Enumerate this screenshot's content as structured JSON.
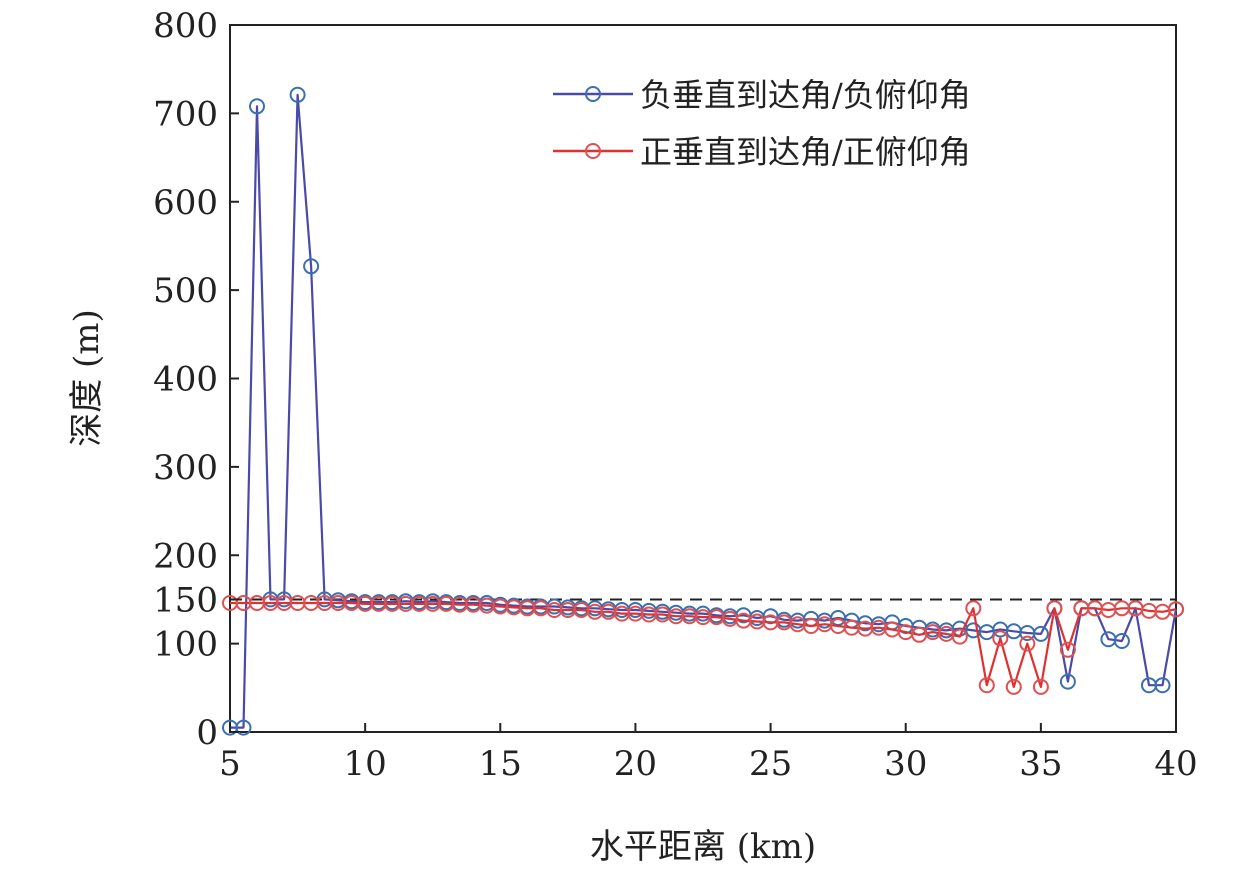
{
  "chart_data": {
    "type": "line",
    "xlabel": "水平距离 (km)",
    "ylabel": "深度 (m)",
    "xlim": [
      5,
      40
    ],
    "ylim": [
      0,
      800
    ],
    "xticks": [
      "5",
      "10",
      "15",
      "20",
      "25",
      "30",
      "35",
      "40"
    ],
    "yticks": [
      "0",
      "100",
      "150",
      "200",
      "300",
      "400",
      "500",
      "600",
      "700",
      "800"
    ],
    "reference_line": {
      "y": 150,
      "style": "dashed"
    },
    "legend_position": "top-right",
    "series": [
      {
        "name": "负垂直到达角/负俯仰角",
        "color": "#4a4aa8",
        "marker_color": "#3a6fb0",
        "points": [
          [
            5.0,
            5
          ],
          [
            5.5,
            5
          ],
          [
            6.0,
            708
          ],
          [
            6.5,
            150
          ],
          [
            7.0,
            150
          ],
          [
            7.5,
            721
          ],
          [
            8.0,
            527
          ],
          [
            8.5,
            150
          ],
          [
            9.0,
            149
          ],
          [
            9.5,
            148
          ],
          [
            10.0,
            147
          ],
          [
            10.5,
            147
          ],
          [
            11.0,
            147
          ],
          [
            11.5,
            148
          ],
          [
            12.0,
            147
          ],
          [
            12.5,
            148
          ],
          [
            13.0,
            147
          ],
          [
            13.5,
            146
          ],
          [
            14.0,
            146
          ],
          [
            14.5,
            146
          ],
          [
            15.0,
            144
          ],
          [
            15.5,
            143
          ],
          [
            16.0,
            142
          ],
          [
            16.5,
            142
          ],
          [
            17.0,
            142
          ],
          [
            17.5,
            141
          ],
          [
            18.0,
            140
          ],
          [
            18.5,
            140
          ],
          [
            19.0,
            139
          ],
          [
            19.5,
            138
          ],
          [
            20.0,
            138
          ],
          [
            20.5,
            137
          ],
          [
            21.0,
            136
          ],
          [
            21.5,
            135
          ],
          [
            22.0,
            134
          ],
          [
            22.5,
            134
          ],
          [
            23.0,
            132
          ],
          [
            23.5,
            131
          ],
          [
            24.0,
            132
          ],
          [
            24.5,
            129
          ],
          [
            25.0,
            131
          ],
          [
            25.5,
            127
          ],
          [
            26.0,
            126
          ],
          [
            26.5,
            128
          ],
          [
            27.0,
            126
          ],
          [
            27.5,
            129
          ],
          [
            28.0,
            126
          ],
          [
            28.5,
            123
          ],
          [
            29.0,
            122
          ],
          [
            29.5,
            124
          ],
          [
            30.0,
            120
          ],
          [
            30.5,
            118
          ],
          [
            31.0,
            116
          ],
          [
            31.5,
            115
          ],
          [
            32.0,
            117
          ],
          [
            32.5,
            115
          ],
          [
            33.0,
            113
          ],
          [
            33.5,
            116
          ],
          [
            34.0,
            114
          ],
          [
            34.5,
            112
          ],
          [
            35.0,
            111
          ],
          [
            35.5,
            140
          ],
          [
            36.0,
            57
          ],
          [
            36.5,
            140
          ],
          [
            37.0,
            140
          ],
          [
            37.5,
            105
          ],
          [
            38.0,
            103
          ],
          [
            38.5,
            140
          ],
          [
            39.0,
            53
          ],
          [
            39.5,
            53
          ],
          [
            40.0,
            139
          ]
        ]
      },
      {
        "name": "正垂直到达角/正俯仰角",
        "color": "#e03030",
        "marker_color": "#e05050",
        "points": [
          [
            5.0,
            146
          ],
          [
            5.5,
            146
          ],
          [
            6.0,
            146
          ],
          [
            6.5,
            146
          ],
          [
            7.0,
            146
          ],
          [
            7.5,
            146
          ],
          [
            8.0,
            146
          ],
          [
            8.5,
            146
          ],
          [
            9.0,
            146
          ],
          [
            9.5,
            146
          ],
          [
            10.0,
            145
          ],
          [
            10.5,
            145
          ],
          [
            11.0,
            145
          ],
          [
            11.5,
            145
          ],
          [
            12.0,
            145
          ],
          [
            12.5,
            145
          ],
          [
            13.0,
            145
          ],
          [
            13.5,
            144
          ],
          [
            14.0,
            144
          ],
          [
            14.5,
            143
          ],
          [
            15.0,
            142
          ],
          [
            15.5,
            141
          ],
          [
            16.0,
            140
          ],
          [
            16.5,
            140
          ],
          [
            17.0,
            138
          ],
          [
            17.5,
            138
          ],
          [
            18.0,
            138
          ],
          [
            18.5,
            136
          ],
          [
            19.0,
            136
          ],
          [
            19.5,
            134
          ],
          [
            20.0,
            134
          ],
          [
            20.5,
            133
          ],
          [
            21.0,
            133
          ],
          [
            21.5,
            131
          ],
          [
            22.0,
            131
          ],
          [
            22.5,
            130
          ],
          [
            23.0,
            130
          ],
          [
            23.5,
            128
          ],
          [
            24.0,
            126
          ],
          [
            24.5,
            125
          ],
          [
            25.0,
            124
          ],
          [
            25.5,
            124
          ],
          [
            26.0,
            122
          ],
          [
            26.5,
            120
          ],
          [
            27.0,
            122
          ],
          [
            27.5,
            120
          ],
          [
            28.0,
            118
          ],
          [
            28.5,
            117
          ],
          [
            29.0,
            118
          ],
          [
            29.5,
            116
          ],
          [
            30.0,
            113
          ],
          [
            30.5,
            110
          ],
          [
            31.0,
            113
          ],
          [
            31.5,
            111
          ],
          [
            32.0,
            108
          ],
          [
            32.5,
            140
          ],
          [
            33.0,
            53
          ],
          [
            33.5,
            106
          ],
          [
            34.0,
            51
          ],
          [
            34.5,
            100
          ],
          [
            35.0,
            51
          ],
          [
            35.5,
            140
          ],
          [
            36.0,
            93
          ],
          [
            36.5,
            140
          ],
          [
            37.0,
            140
          ],
          [
            37.5,
            138
          ],
          [
            38.0,
            140
          ],
          [
            38.5,
            140
          ],
          [
            39.0,
            137
          ],
          [
            39.5,
            136
          ],
          [
            40.0,
            139
          ]
        ]
      }
    ]
  }
}
